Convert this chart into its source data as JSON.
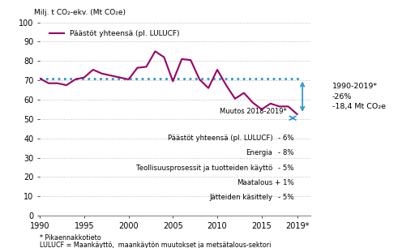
{
  "years": [
    1990,
    1991,
    1992,
    1993,
    1994,
    1995,
    1996,
    1997,
    1998,
    1999,
    2000,
    2001,
    2002,
    2003,
    2004,
    2005,
    2006,
    2007,
    2008,
    2009,
    2010,
    2011,
    2012,
    2013,
    2014,
    2015,
    2016,
    2017,
    2018,
    2019
  ],
  "values": [
    71.0,
    68.5,
    68.5,
    67.5,
    70.5,
    71.5,
    75.5,
    73.5,
    72.5,
    71.5,
    70.5,
    76.5,
    77.0,
    85.0,
    82.0,
    69.5,
    81.0,
    80.5,
    70.5,
    66.0,
    75.5,
    67.5,
    60.5,
    63.5,
    58.5,
    55.0,
    58.0,
    56.5,
    56.5,
    52.5
  ],
  "line_color": "#990066",
  "dotted_line_y": 70.7,
  "dotted_line_color": "#3399CC",
  "background_color": "#ffffff",
  "ylabel": "Milj. t CO₂-ekv. (Mt CO₂e)",
  "ylim": [
    0,
    100
  ],
  "xlim": [
    1990,
    2020.5
  ],
  "yticks": [
    0,
    10,
    20,
    30,
    40,
    50,
    60,
    70,
    80,
    90,
    100
  ],
  "xticks": [
    1990,
    1995,
    2000,
    2005,
    2010,
    2015,
    2019
  ],
  "xticklabels": [
    "1990",
    "1995",
    "2000",
    "2005",
    "2010",
    "2015",
    "2019*"
  ],
  "legend_label": "Päästöt yhteensä (pl. LULUCF)",
  "annotation_right_line1": "1990-2019*",
  "annotation_right_line2": "-26%",
  "annotation_right_line3": "-18,4 Mt CO₂e",
  "annotation_change": "Muutos 2018-2019*",
  "annotation_box_lines": [
    [
      "Päästöt yhteensä (pl. LULUCF)",
      "- 6%"
    ],
    [
      "Energia",
      "- 8%"
    ],
    [
      "Teollisuusprosessit ja tuotteiden käyttö",
      "- 5%"
    ],
    [
      "Maatalous",
      "+ 1%"
    ],
    [
      "Jätteiden käsittely",
      "- 5%"
    ]
  ],
  "footnote1": "* Pikaennakkotieto",
  "footnote2": "LULUCF = Maankäyttö,  maankäytön muutokset ja metsätalous-sektori",
  "arrow_color": "#3399CC",
  "grid_color": "#cccccc",
  "value_1990": 71.0,
  "value_2019": 52.5,
  "value_2018": 56.5
}
